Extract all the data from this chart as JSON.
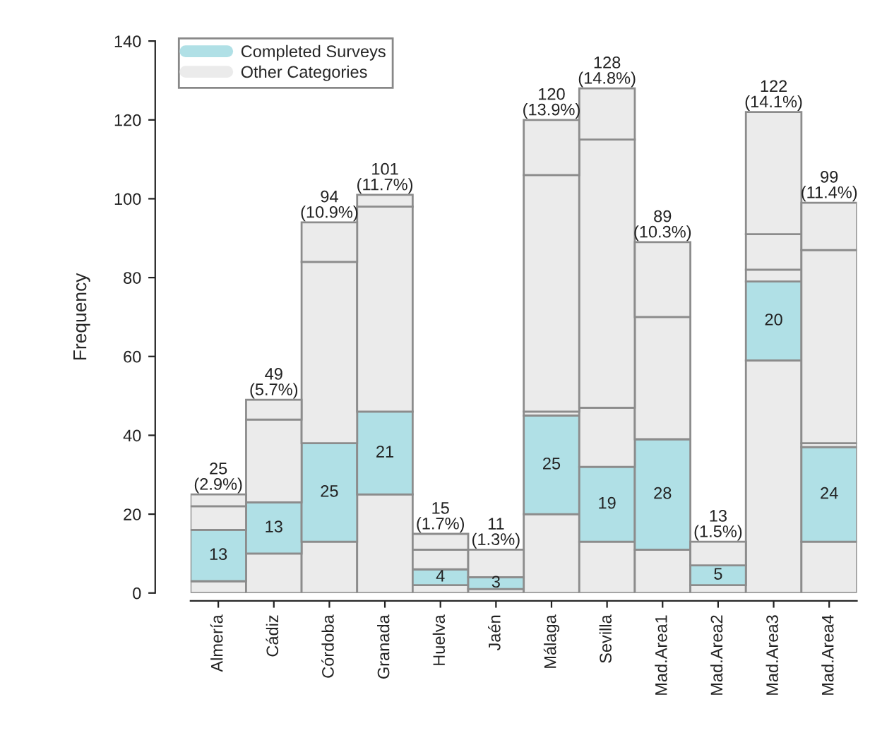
{
  "chart_data": {
    "type": "bar",
    "stacked": true,
    "ylabel": "Frequency",
    "categories": [
      "Almería",
      "Cádiz",
      "Córdoba",
      "Granada",
      "Huelva",
      "Jaén",
      "Málaga",
      "Sevilla",
      "Mad.Area1",
      "Mad.Area2",
      "Mad.Area3",
      "Mad.Area4"
    ],
    "series": [
      {
        "name": "Other Categories",
        "color": "#ebebeb",
        "values": [
          3,
          10,
          13,
          25,
          2,
          1,
          20,
          13,
          11,
          2,
          59,
          13
        ]
      },
      {
        "name": "Completed Surveys",
        "color": "#b0e0e6",
        "values": [
          13,
          13,
          25,
          21,
          4,
          3,
          25,
          19,
          28,
          5,
          20,
          24
        ],
        "value_labels": [
          "13",
          "13",
          "25",
          "21",
          "4",
          "3",
          "25",
          "19",
          "28",
          "5",
          "20",
          "24"
        ]
      },
      {
        "color": "#ebebeb",
        "values": [
          6,
          21,
          46,
          52,
          5,
          7,
          1,
          15,
          31,
          6,
          3,
          1
        ]
      },
      {
        "color": "#ebebeb",
        "values": [
          3,
          5,
          10,
          3,
          4,
          null,
          60,
          68,
          19,
          null,
          9,
          49
        ]
      },
      {
        "color": "#ebebeb",
        "values": [
          null,
          null,
          null,
          null,
          null,
          null,
          14,
          13,
          null,
          null,
          31,
          12
        ]
      }
    ],
    "totals": [
      "25\n(2.9%)",
      "49\n(5.7%)",
      "94\n(10.9%)",
      "101\n(11.7%)",
      "15\n(1.7%)",
      "11\n(1.3%)",
      "120\n(13.9%)",
      "128\n(14.8%)",
      "89\n(10.3%)",
      "13\n(1.5%)",
      "122\n(14.1%)",
      "99\n(11.4%)"
    ],
    "ylim": [
      0,
      140
    ],
    "yticks": [
      0,
      20,
      40,
      60,
      80,
      100,
      120,
      140
    ],
    "legend": "top left",
    "grid": false
  }
}
